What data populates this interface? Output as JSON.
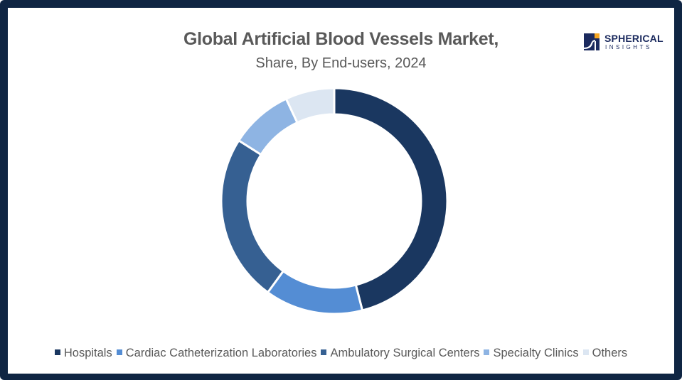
{
  "header": {
    "title": "Global Artificial Blood Vessels Market,",
    "subtitle": "Share, By End-users, 2024"
  },
  "logo": {
    "word": "SPHERICAL",
    "sub": "INSIGHTS"
  },
  "colors": {
    "frame": "#0f2543",
    "text": "#595959",
    "logo": "#1b2a5e",
    "logo_accent": "#f5a623"
  },
  "chart_data": {
    "type": "pie",
    "variant": "donut",
    "title": "Global Artificial Blood Vessels Market, Share, By End-users, 2024",
    "categories": [
      "Hospitals",
      "Cardiac Catheterization Laboratories",
      "Ambulatory Surgical Centers",
      "Specialty Clinics",
      "Others"
    ],
    "values": [
      46,
      14,
      24,
      9,
      7
    ],
    "unit": "%",
    "colors": [
      "#1a3760",
      "#548dd4",
      "#366092",
      "#8eb4e3",
      "#dce6f2"
    ],
    "legend_position": "bottom",
    "start_angle_deg": 0,
    "direction": "clockwise",
    "data_labels": false
  },
  "legend": {
    "items": [
      {
        "label": "Hospitals",
        "color": "#1a3760"
      },
      {
        "label": "Cardiac Catheterization Laboratories",
        "color": "#548dd4"
      },
      {
        "label": "Ambulatory Surgical Centers",
        "color": "#366092"
      },
      {
        "label": "Specialty Clinics",
        "color": "#8eb4e3"
      },
      {
        "label": "Others",
        "color": "#dce6f2"
      }
    ]
  }
}
